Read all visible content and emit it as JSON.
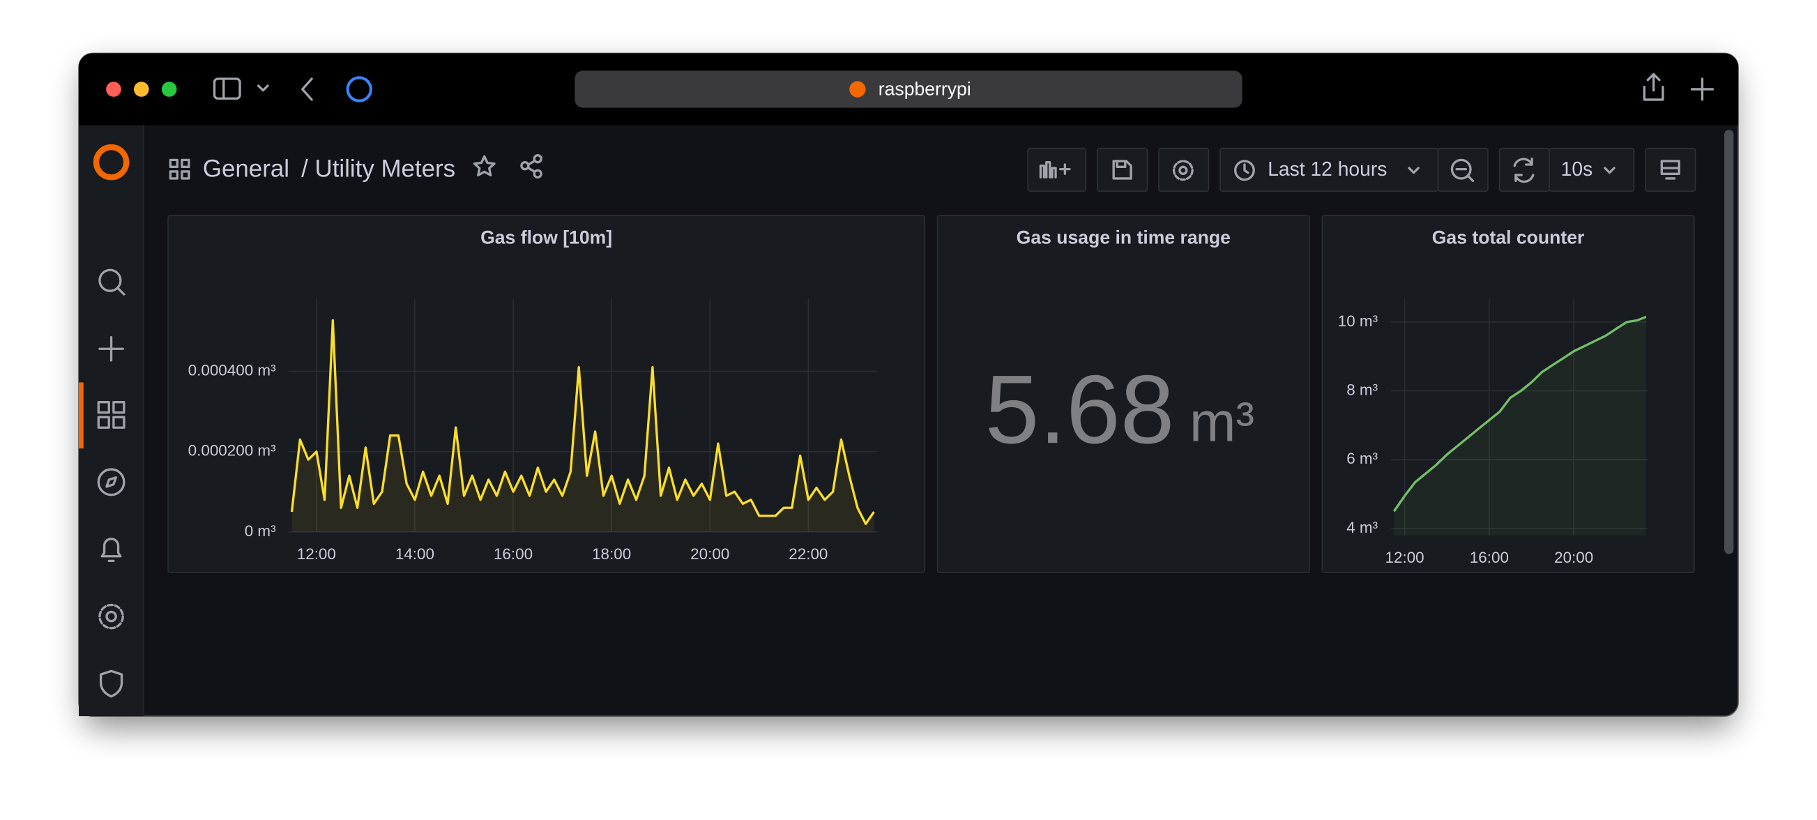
{
  "browser": {
    "url": "raspberrypi"
  },
  "breadcrumb": {
    "folder": "General",
    "dashboard": "/ Utility Meters"
  },
  "toolbar": {
    "time_range": "Last 12 hours",
    "refresh": "10s"
  },
  "chart_data": [
    {
      "type": "line",
      "title": "Gas flow [10m]",
      "color": "#fade2a",
      "grid": true,
      "fill": true,
      "x": [
        690,
        700,
        710,
        720,
        730,
        740,
        750,
        760,
        770,
        780,
        790,
        800,
        810,
        820,
        830,
        840,
        850,
        860,
        870,
        880,
        890,
        900,
        910,
        920,
        930,
        940,
        950,
        960,
        970,
        980,
        990,
        1000,
        1010,
        1020,
        1030,
        1040,
        1050,
        1060,
        1070,
        1080,
        1090,
        1100,
        1110,
        1120,
        1130,
        1140,
        1150,
        1160,
        1170,
        1180,
        1190,
        1200,
        1210,
        1220,
        1230,
        1240,
        1250,
        1260,
        1270,
        1280,
        1290,
        1300,
        1310,
        1320,
        1330,
        1340,
        1350,
        1360,
        1370,
        1380,
        1390,
        1400
      ],
      "values": [
        5e-05,
        0.00023,
        0.00018,
        0.0002,
        8e-05,
        0.000527,
        6e-05,
        0.00014,
        6e-05,
        0.00021,
        7e-05,
        0.0001,
        0.00024,
        0.00024,
        0.00012,
        8e-05,
        0.00015,
        9e-05,
        0.00014,
        7e-05,
        0.00026,
        9e-05,
        0.00014,
        8e-05,
        0.00013,
        9e-05,
        0.00015,
        0.0001,
        0.00014,
        9e-05,
        0.00016,
        0.0001,
        0.00013,
        9e-05,
        0.00015,
        0.00041,
        0.00014,
        0.00025,
        9e-05,
        0.00014,
        7e-05,
        0.00013,
        8e-05,
        0.00014,
        0.00041,
        9e-05,
        0.00016,
        8e-05,
        0.00013,
        9e-05,
        0.00012,
        8e-05,
        0.00022,
        9e-05,
        0.0001,
        7e-05,
        8e-05,
        4e-05,
        4e-05,
        4e-05,
        6e-05,
        6e-05,
        0.00019,
        8e-05,
        0.00011,
        8e-05,
        0.0001,
        0.00023,
        0.00014,
        6e-05,
        2e-05,
        5e-05
      ],
      "xlim": [
        686,
        1404
      ],
      "ylim": [
        0,
        0.00058
      ],
      "xticks": [
        {
          "value": 720,
          "label": "12:00"
        },
        {
          "value": 840,
          "label": "14:00"
        },
        {
          "value": 960,
          "label": "16:00"
        },
        {
          "value": 1080,
          "label": "18:00"
        },
        {
          "value": 1200,
          "label": "20:00"
        },
        {
          "value": 1320,
          "label": "22:00"
        }
      ],
      "yticks": [
        {
          "value": 0,
          "label": "0 m³"
        },
        {
          "value": 0.0002,
          "label": "0.000200 m³"
        },
        {
          "value": 0.0004,
          "label": "0.000400 m³"
        }
      ]
    },
    {
      "type": "stat",
      "title": "Gas usage in time range",
      "value": 5.68,
      "unit": "m³"
    },
    {
      "type": "line",
      "title": "Gas total counter",
      "color": "#73bf69",
      "grid": true,
      "fill": true,
      "x": [
        690,
        720,
        750,
        780,
        810,
        840,
        870,
        900,
        930,
        960,
        990,
        1020,
        1050,
        1080,
        1110,
        1140,
        1170,
        1200,
        1230,
        1260,
        1290,
        1320,
        1350,
        1380,
        1405
      ],
      "values": [
        4.5,
        4.95,
        5.35,
        5.6,
        5.85,
        6.15,
        6.4,
        6.65,
        6.9,
        7.15,
        7.4,
        7.8,
        8.0,
        8.25,
        8.55,
        8.75,
        8.95,
        9.15,
        9.3,
        9.45,
        9.6,
        9.8,
        10.0,
        10.05,
        10.15
      ],
      "xlim": [
        680,
        1410
      ],
      "ylim": [
        3.8,
        10.67
      ],
      "xticks": [
        {
          "value": 720,
          "label": "12:00"
        },
        {
          "value": 960,
          "label": "16:00"
        },
        {
          "value": 1200,
          "label": "20:00"
        }
      ],
      "yticks": [
        {
          "value": 4,
          "label": "4 m³"
        },
        {
          "value": 6,
          "label": "6 m³"
        },
        {
          "value": 8,
          "label": "8 m³"
        },
        {
          "value": 10,
          "label": "10 m³"
        }
      ]
    }
  ]
}
